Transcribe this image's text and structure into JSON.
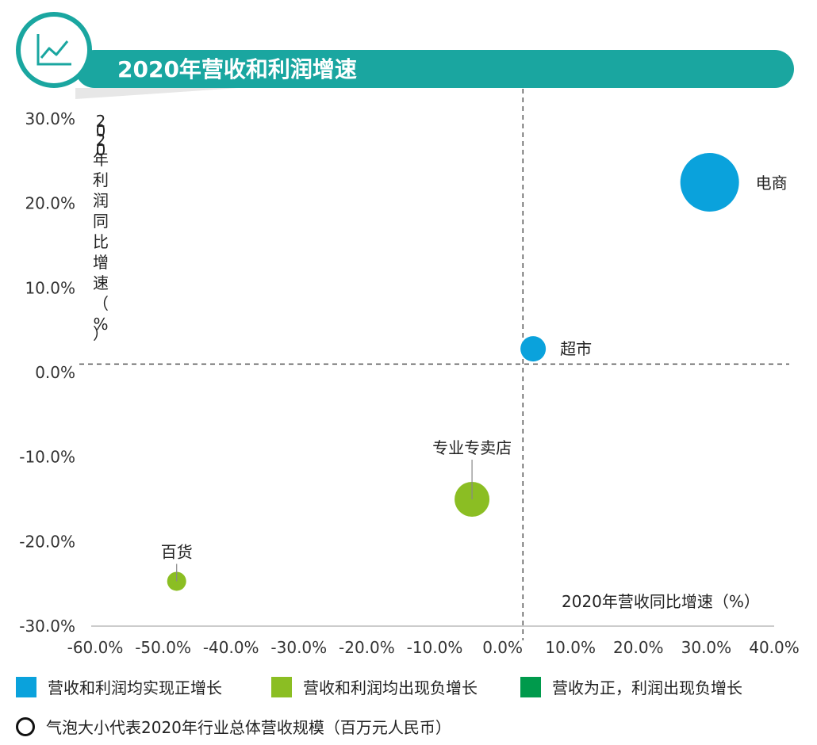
{
  "header": {
    "title": "2020年营收和利润增速",
    "icon": "line-chart-icon",
    "accent_color": "#1aa6a0"
  },
  "chart_data": {
    "type": "scatter",
    "xlabel": "2020年营收同比增速（%）",
    "ylabel": "2020年利润同比增速（%）",
    "xlim": [
      -60,
      40
    ],
    "ylim": [
      -30,
      30
    ],
    "x_ticks": [
      "-60.0%",
      "-50.0%",
      "-40.0%",
      "-30.0%",
      "-20.0%",
      "-10.0%",
      "0.0%",
      "10.0%",
      "20.0%",
      "30.0%",
      "40.0%"
    ],
    "y_ticks": [
      "30.0%",
      "20.0%",
      "10.0%",
      "0.0%",
      "-10.0%",
      "-20.0%",
      "-30.0%"
    ],
    "reference_lines": {
      "x": 3,
      "y": 1
    },
    "grid": false,
    "points": [
      {
        "label": "电商",
        "x": 30.5,
        "y": 22.5,
        "size": 37,
        "group": 0
      },
      {
        "label": "超市",
        "x": 4.5,
        "y": 2.8,
        "size": 16,
        "group": 0
      },
      {
        "label": "专业专卖店",
        "x": -4.5,
        "y": -15,
        "size": 22,
        "group": 1
      },
      {
        "label": "百货",
        "x": -48,
        "y": -24.7,
        "size": 12,
        "group": 1
      }
    ],
    "groups": [
      {
        "name": "营收和利润均实现正增长",
        "color": "#0aa2dc"
      },
      {
        "name": "营收和利润均出现负增长",
        "color": "#8bbe23"
      },
      {
        "name": "营收为正，利润出现负增长",
        "color": "#009a4c"
      }
    ],
    "size_note": "气泡大小代表2020年行业总体营收规模（百万元人民币）"
  }
}
